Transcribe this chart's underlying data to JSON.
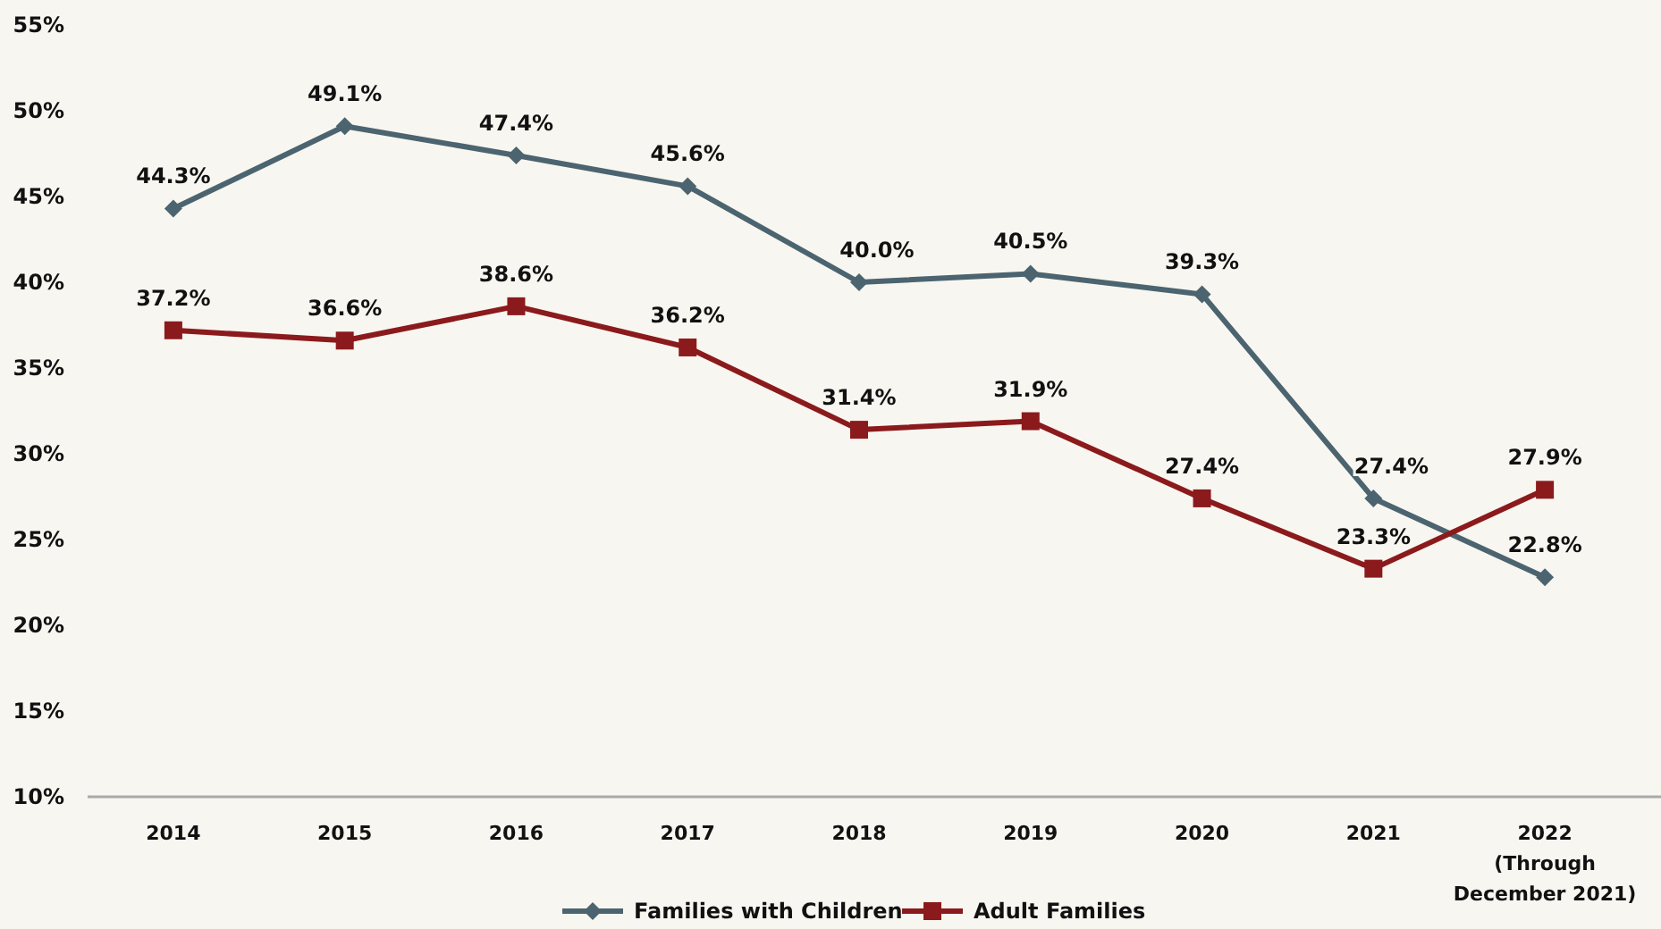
{
  "chart_data": {
    "type": "line",
    "categories": [
      "2014",
      "2015",
      "2016",
      "2017",
      "2018",
      "2019",
      "2020",
      "2021",
      "2022\n(Through\nDecember 2021)"
    ],
    "series": [
      {
        "name": "Families with Children",
        "color": "#4b6470",
        "marker": "diamond",
        "values": [
          44.3,
          49.1,
          47.4,
          45.6,
          40.0,
          40.5,
          39.3,
          27.4,
          22.8
        ],
        "value_labels": [
          "44.3%",
          "49.1%",
          "47.4%",
          "45.6%",
          "40.0%",
          "40.5%",
          "39.3%",
          "27.4%",
          "22.8%"
        ]
      },
      {
        "name": "Adult Families",
        "color": "#8b1a1c",
        "marker": "square",
        "values": [
          37.2,
          36.6,
          38.6,
          36.2,
          31.4,
          31.9,
          27.4,
          23.3,
          27.9
        ],
        "value_labels": [
          "37.2%",
          "36.6%",
          "38.6%",
          "36.2%",
          "31.4%",
          "31.9%",
          "27.4%",
          "23.3%",
          "27.9%"
        ]
      }
    ],
    "ylim": [
      10,
      55
    ],
    "yticks": [
      {
        "value": 10,
        "label": "10%"
      },
      {
        "value": 15,
        "label": "15%"
      },
      {
        "value": 20,
        "label": "20%"
      },
      {
        "value": 25,
        "label": "25%"
      },
      {
        "value": 30,
        "label": "30%"
      },
      {
        "value": 35,
        "label": "35%"
      },
      {
        "value": 40,
        "label": "40%"
      },
      {
        "value": 45,
        "label": "45%"
      },
      {
        "value": 50,
        "label": "50%"
      },
      {
        "value": 55,
        "label": "55%"
      }
    ],
    "grid": false,
    "legend": "bottom",
    "line_style": "solid"
  }
}
